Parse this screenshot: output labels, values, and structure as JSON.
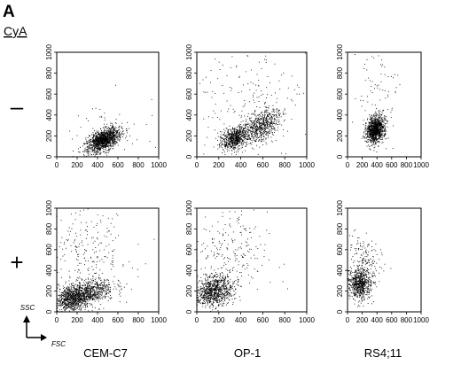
{
  "panel_label": "A",
  "treatment_label": "CyA",
  "row_labels": [
    "–",
    "+"
  ],
  "column_labels": [
    "CEM-C7",
    "OP-1",
    "RS4;11"
  ],
  "axis_labels": {
    "x": "FSC",
    "y": "SSC"
  },
  "tick_values": [
    0,
    200,
    400,
    600,
    800,
    1000
  ],
  "chart_data": [
    {
      "type": "scatter",
      "row": "–",
      "column": "CEM-C7",
      "xlim": [
        0,
        1000
      ],
      "ylim": [
        0,
        1000
      ],
      "grid": false,
      "clusters": [
        {
          "cx": 460,
          "cy": 160,
          "sx": 90,
          "sy": 45,
          "rot": 0.5,
          "n": 1300
        },
        {
          "cx": 500,
          "cy": 220,
          "sx": 260,
          "sy": 180,
          "rot": 0.0,
          "n": 50
        }
      ]
    },
    {
      "type": "scatter",
      "row": "–",
      "column": "OP-1",
      "xlim": [
        0,
        1000
      ],
      "ylim": [
        0,
        1000
      ],
      "grid": false,
      "clusters": [
        {
          "cx": 350,
          "cy": 180,
          "sx": 70,
          "sy": 45,
          "rot": 0.6,
          "n": 700
        },
        {
          "cx": 600,
          "cy": 300,
          "sx": 100,
          "sy": 60,
          "rot": 0.7,
          "n": 600
        },
        {
          "cx": 450,
          "cy": 550,
          "sx": 280,
          "sy": 260,
          "rot": 0.0,
          "n": 200
        }
      ]
    },
    {
      "type": "scatter",
      "row": "–",
      "column": "RS4;11",
      "xlim": [
        0,
        1000
      ],
      "ylim": [
        0,
        1000
      ],
      "grid": false,
      "clusters": [
        {
          "cx": 380,
          "cy": 260,
          "sx": 70,
          "sy": 55,
          "rot": 0.9,
          "n": 1100
        },
        {
          "cx": 380,
          "cy": 600,
          "sx": 150,
          "sy": 240,
          "rot": 0.0,
          "n": 80
        }
      ]
    },
    {
      "type": "scatter",
      "row": "+",
      "column": "CEM-C7",
      "xlim": [
        0,
        1000
      ],
      "ylim": [
        0,
        1000
      ],
      "grid": false,
      "clusters": [
        {
          "cx": 150,
          "cy": 120,
          "sx": 90,
          "sy": 60,
          "rot": 0.3,
          "n": 700
        },
        {
          "cx": 300,
          "cy": 190,
          "sx": 130,
          "sy": 60,
          "rot": 0.2,
          "n": 700
        },
        {
          "cx": 300,
          "cy": 560,
          "sx": 220,
          "sy": 230,
          "rot": 0.0,
          "n": 250
        }
      ]
    },
    {
      "type": "scatter",
      "row": "+",
      "column": "OP-1",
      "xlim": [
        0,
        1000
      ],
      "ylim": [
        0,
        1000
      ],
      "grid": false,
      "clusters": [
        {
          "cx": 150,
          "cy": 200,
          "sx": 90,
          "sy": 70,
          "rot": 0.3,
          "n": 900
        },
        {
          "cx": 280,
          "cy": 520,
          "sx": 180,
          "sy": 220,
          "rot": 0.0,
          "n": 250
        }
      ]
    },
    {
      "type": "scatter",
      "row": "+",
      "column": "RS4;11",
      "xlim": [
        0,
        1000
      ],
      "ylim": [
        0,
        1000
      ],
      "grid": false,
      "clusters": [
        {
          "cx": 170,
          "cy": 270,
          "sx": 75,
          "sy": 75,
          "rot": 0.8,
          "n": 700
        },
        {
          "cx": 260,
          "cy": 520,
          "sx": 90,
          "sy": 130,
          "rot": 0.6,
          "n": 150
        }
      ]
    }
  ]
}
